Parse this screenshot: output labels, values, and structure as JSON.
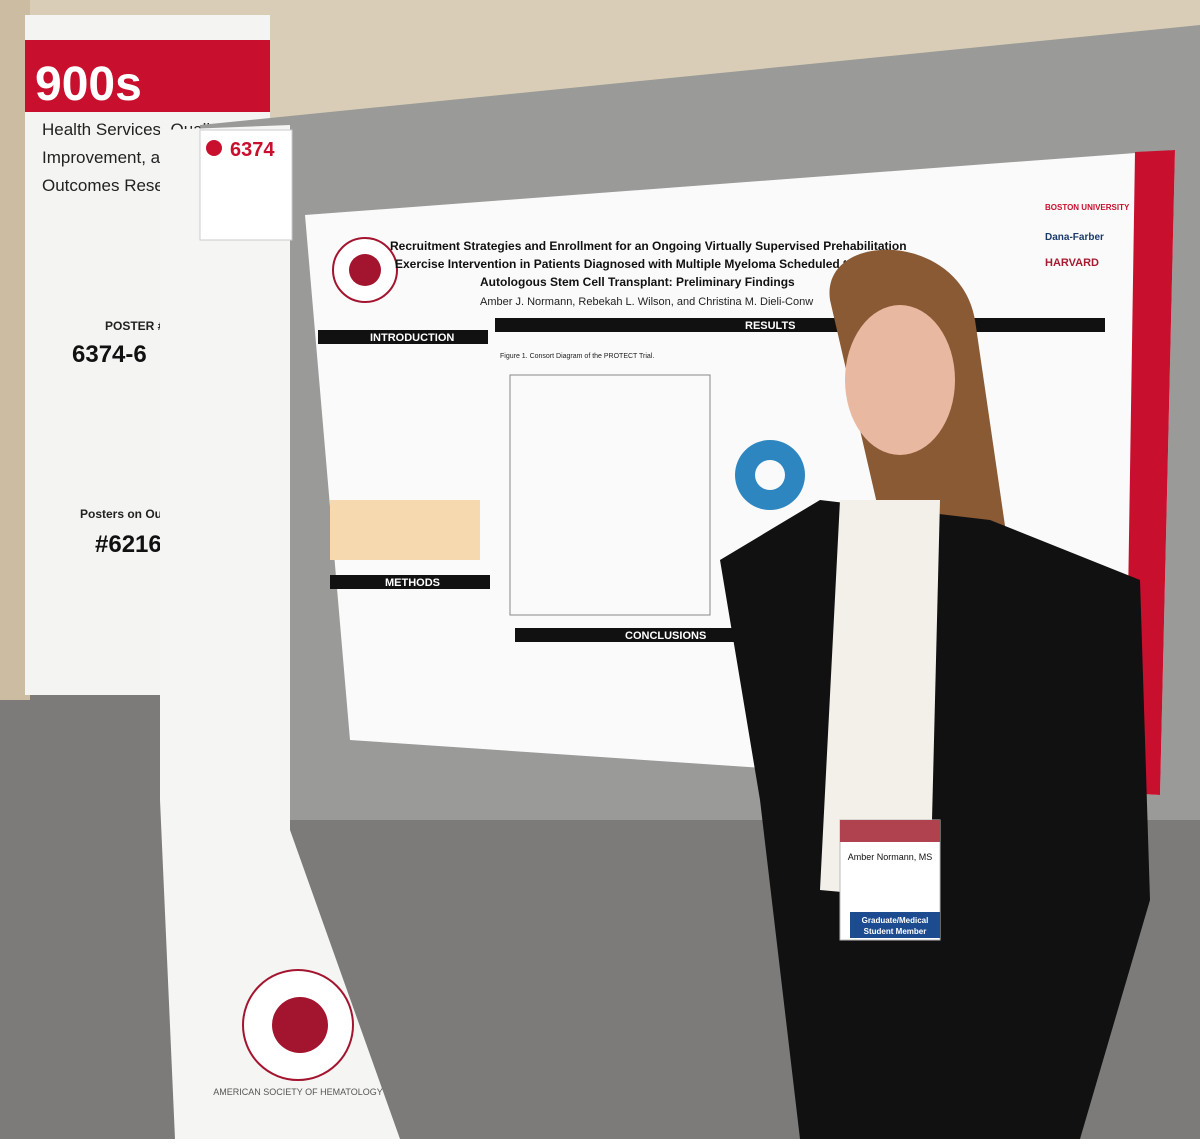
{
  "sign": {
    "number": "900s",
    "category_lines": [
      "Health Services, Quality",
      "Improvement, and",
      "Outcomes Resea"
    ],
    "poster_label": "POSTER #",
    "poster_range": "6374-6",
    "footer": "Posters on Outcom",
    "footer_number": "#6216"
  },
  "poster_tag": "6374",
  "poster": {
    "title_lines": [
      "Recruitment Strategies and Enrollment for an Ongoing Virtually Supervised Prehabilitation",
      "Exercise Intervention in Patients Diagnosed with Multiple Myeloma Scheduled to Receive",
      "Autologous Stem Cell Transplant: Preliminary Findings"
    ],
    "authors": "Amber J. Normann, Rebekah L. Wilson, and Christina M. Dieli-Conw",
    "sections": [
      "INTRODUCTION",
      "RESULTS",
      "METHODS",
      "CONCLUSIONS"
    ],
    "figure_caption": "Figure 1. Consort Diagram of the PROTECT Trial.",
    "logos": [
      "BOSTON UNIVERSITY",
      "Dana-Farber",
      "HARVARD"
    ]
  },
  "badge": {
    "name": "Amber Normann, MS",
    "member_lines": [
      "Graduate/Medical",
      "Student Member"
    ]
  },
  "society": "AMERICAN SOCIETY OF HEMATOLOGY"
}
